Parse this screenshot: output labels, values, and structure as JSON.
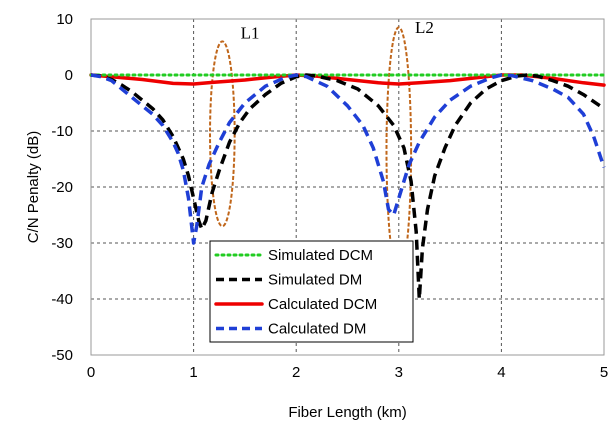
{
  "chart_data": {
    "type": "line",
    "title": "",
    "xlabel": "Fiber Length (km)",
    "ylabel": "C/N Penalty (dB)",
    "xlim": [
      0,
      5
    ],
    "ylim": [
      -50,
      10
    ],
    "xticks": [
      0,
      1,
      2,
      3,
      4,
      5
    ],
    "yticks": [
      10,
      0,
      -10,
      -20,
      -30,
      -40,
      -50
    ],
    "grid": true,
    "legend_position": "bottom-center",
    "annotations": [
      {
        "text": "L1",
        "x": 1.55,
        "y": 6.5
      },
      {
        "text": "L2",
        "x": 3.25,
        "y": 7.5
      }
    ],
    "ellipses": [
      {
        "cx": 1.28,
        "cy": -10.5,
        "rx": 0.12,
        "ry": 16.5
      },
      {
        "cx": 3.0,
        "cy": -13.5,
        "rx": 0.12,
        "ry": 22.0
      }
    ],
    "series": [
      {
        "name": "Simulated DCM",
        "color": "#22cc22",
        "style": "dotted",
        "points": [
          [
            0,
            0
          ],
          [
            0.5,
            0
          ],
          [
            1,
            0
          ],
          [
            1.5,
            0
          ],
          [
            2,
            0
          ],
          [
            2.5,
            0
          ],
          [
            3,
            0
          ],
          [
            3.5,
            0
          ],
          [
            4,
            0
          ],
          [
            4.5,
            0
          ],
          [
            5,
            0
          ]
        ]
      },
      {
        "name": "Simulated DM",
        "color": "#000000",
        "style": "dashed",
        "points": [
          [
            0,
            0
          ],
          [
            0.1,
            -0.2
          ],
          [
            0.2,
            -0.8
          ],
          [
            0.3,
            -1.8
          ],
          [
            0.4,
            -3
          ],
          [
            0.5,
            -4.5
          ],
          [
            0.6,
            -6
          ],
          [
            0.7,
            -8
          ],
          [
            0.8,
            -11
          ],
          [
            0.9,
            -15
          ],
          [
            0.95,
            -18
          ],
          [
            1.0,
            -22
          ],
          [
            1.05,
            -26
          ],
          [
            1.08,
            -27.5
          ],
          [
            1.12,
            -26
          ],
          [
            1.18,
            -21
          ],
          [
            1.25,
            -17
          ],
          [
            1.35,
            -12
          ],
          [
            1.45,
            -8.5
          ],
          [
            1.55,
            -6
          ],
          [
            1.7,
            -3.5
          ],
          [
            1.85,
            -1.5
          ],
          [
            2.0,
            -0.3
          ],
          [
            2.1,
            0
          ],
          [
            2.2,
            -0.2
          ],
          [
            2.4,
            -1
          ],
          [
            2.6,
            -2.5
          ],
          [
            2.8,
            -5.5
          ],
          [
            2.95,
            -9
          ],
          [
            3.05,
            -13
          ],
          [
            3.12,
            -19
          ],
          [
            3.17,
            -28
          ],
          [
            3.2,
            -40
          ],
          [
            3.23,
            -31
          ],
          [
            3.28,
            -24
          ],
          [
            3.35,
            -18
          ],
          [
            3.45,
            -13
          ],
          [
            3.55,
            -9
          ],
          [
            3.7,
            -5
          ],
          [
            3.85,
            -2.5
          ],
          [
            4.0,
            -1
          ],
          [
            4.15,
            -0.2
          ],
          [
            4.25,
            0
          ],
          [
            4.35,
            -0.2
          ],
          [
            4.5,
            -1
          ],
          [
            4.65,
            -2
          ],
          [
            4.8,
            -3.5
          ],
          [
            5.0,
            -6
          ]
        ]
      },
      {
        "name": "Calculated DCM",
        "color": "#ee0000",
        "style": "solid",
        "points": [
          [
            0,
            0
          ],
          [
            0.2,
            -0.3
          ],
          [
            0.5,
            -0.8
          ],
          [
            0.8,
            -1.5
          ],
          [
            1.0,
            -1.6
          ],
          [
            1.2,
            -1.3
          ],
          [
            1.5,
            -0.9
          ],
          [
            1.8,
            -0.3
          ],
          [
            2.0,
            0
          ],
          [
            2.2,
            -0.2
          ],
          [
            2.5,
            -0.8
          ],
          [
            2.8,
            -1.4
          ],
          [
            3.0,
            -1.6
          ],
          [
            3.2,
            -1.4
          ],
          [
            3.5,
            -1
          ],
          [
            3.8,
            -0.4
          ],
          [
            4.0,
            0
          ],
          [
            4.2,
            0
          ],
          [
            4.5,
            -0.6
          ],
          [
            4.8,
            -1.4
          ],
          [
            5.0,
            -1.8
          ]
        ]
      },
      {
        "name": "Calculated DM",
        "color": "#1f3fd6",
        "style": "dashed",
        "points": [
          [
            0,
            0
          ],
          [
            0.1,
            -0.3
          ],
          [
            0.2,
            -1
          ],
          [
            0.3,
            -2.5
          ],
          [
            0.4,
            -4
          ],
          [
            0.5,
            -5.5
          ],
          [
            0.6,
            -7
          ],
          [
            0.7,
            -9
          ],
          [
            0.8,
            -12
          ],
          [
            0.85,
            -14
          ],
          [
            0.9,
            -17
          ],
          [
            0.95,
            -22
          ],
          [
            1.0,
            -30
          ],
          [
            1.03,
            -27
          ],
          [
            1.08,
            -20
          ],
          [
            1.15,
            -16
          ],
          [
            1.25,
            -12
          ],
          [
            1.35,
            -8.5
          ],
          [
            1.5,
            -5
          ],
          [
            1.7,
            -2
          ],
          [
            1.9,
            -0.4
          ],
          [
            2.0,
            0
          ],
          [
            2.1,
            -0.3
          ],
          [
            2.3,
            -2
          ],
          [
            2.5,
            -5.5
          ],
          [
            2.65,
            -9
          ],
          [
            2.75,
            -13
          ],
          [
            2.85,
            -19
          ],
          [
            2.9,
            -24
          ],
          [
            2.95,
            -25
          ],
          [
            3.0,
            -22
          ],
          [
            3.05,
            -19
          ],
          [
            3.1,
            -16
          ],
          [
            3.2,
            -12
          ],
          [
            3.35,
            -7.5
          ],
          [
            3.5,
            -4.5
          ],
          [
            3.7,
            -2
          ],
          [
            3.9,
            -0.5
          ],
          [
            4.0,
            0
          ],
          [
            4.1,
            -0.1
          ],
          [
            4.3,
            -1
          ],
          [
            4.5,
            -2.5
          ],
          [
            4.65,
            -4
          ],
          [
            4.8,
            -7
          ],
          [
            4.9,
            -11
          ],
          [
            5.0,
            -16.5
          ]
        ]
      }
    ]
  }
}
